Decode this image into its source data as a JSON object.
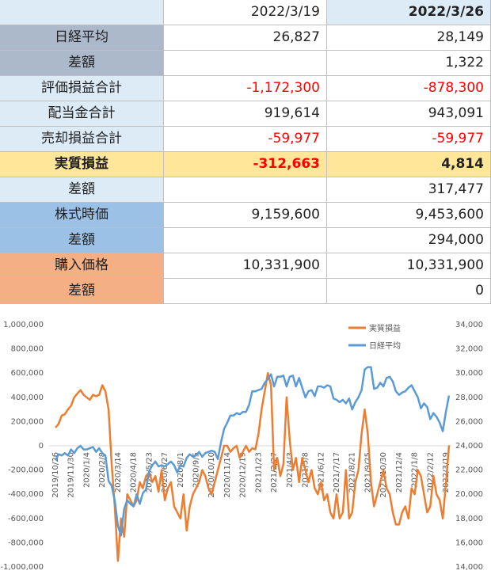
{
  "table": {
    "header": [
      "2022/3/19",
      "2022/3/26"
    ],
    "rows": [
      [
        "日経平均",
        "26,827",
        "28,149"
      ],
      [
        "差額",
        null,
        "1,322"
      ],
      [
        "評価損益合計",
        "-1,172,300",
        "-878,300"
      ],
      [
        "配当金合計",
        "919,614",
        "943,091"
      ],
      [
        "売却損益合計",
        "-59,977",
        "-59,977"
      ],
      [
        "実質損益",
        "-312,663",
        "4,814"
      ],
      [
        "差額",
        null,
        "317,477"
      ],
      [
        "株式時価",
        "9,159,600",
        "9,453,600"
      ],
      [
        "差額",
        null,
        "294,000"
      ],
      [
        "購入価格",
        "10,331,900",
        "10,331,900"
      ],
      [
        "差額",
        null,
        "0"
      ]
    ]
  },
  "chart_data": {
    "type": "line",
    "categories": [
      "2019/10/26",
      null,
      null,
      null,
      null,
      "2019/11/30",
      null,
      null,
      null,
      null,
      "2020/1/4",
      null,
      null,
      null,
      null,
      "2020/2/8",
      null,
      null,
      null,
      null,
      "2020/3/14",
      null,
      null,
      null,
      null,
      "2020/4/18",
      null,
      null,
      null,
      null,
      "2020/5/23",
      null,
      null,
      null,
      null,
      "2020/6/27",
      null,
      null,
      null,
      null,
      "2020/8/1",
      null,
      null,
      null,
      null,
      "2020/9/5",
      null,
      null,
      null,
      null,
      "2020/10/10",
      null,
      null,
      null,
      null,
      "2020/11/14",
      null,
      null,
      null,
      null,
      "2020/12/19",
      null,
      null,
      null,
      null,
      "2021/1/23",
      null,
      null,
      null,
      null,
      "2021/2/27",
      null,
      null,
      null,
      null,
      "2021/4/3",
      null,
      null,
      null,
      null,
      "2021/5/8",
      null,
      null,
      null,
      null,
      "2021/6/12",
      null,
      null,
      null,
      null,
      "2021/7/17",
      null,
      null,
      null,
      null,
      "2021/8/21",
      null,
      null,
      null,
      null,
      "2021/9/25",
      null,
      null,
      null,
      null,
      "2021/10/30",
      null,
      null,
      null,
      null,
      "2021/12/4",
      null,
      null,
      null,
      null,
      "2022/1/8",
      null,
      null,
      null,
      null,
      "2022/2/12",
      null,
      null,
      null,
      null,
      "2022/3/19",
      null
    ],
    "series": [
      {
        "name": "実質損益",
        "color": "#ed7d31",
        "values": [
          150000,
          180000,
          250000,
          260000,
          300000,
          330000,
          400000,
          430000,
          460000,
          420000,
          400000,
          380000,
          420000,
          410000,
          420000,
          500000,
          450000,
          300000,
          -150000,
          -500000,
          -950000,
          -600000,
          -750000,
          -400000,
          -450000,
          -500000,
          -450000,
          -300000,
          -350000,
          -250000,
          -220000,
          -300000,
          -250000,
          -380000,
          -200000,
          -450000,
          -350000,
          -300000,
          -500000,
          -550000,
          -600000,
          -400000,
          -700000,
          -500000,
          -400000,
          -350000,
          -300000,
          -200000,
          -250000,
          -350000,
          -400000,
          -300000,
          -200000,
          -100000,
          0,
          0,
          -50000,
          -20000,
          0,
          -100000,
          -50000,
          0,
          -50000,
          -20000,
          -30000,
          100000,
          300000,
          450000,
          600000,
          500000,
          -200000,
          -100000,
          -250000,
          -150000,
          400000,
          50000,
          -200000,
          -100000,
          -300000,
          -100000,
          -200000,
          -300000,
          -200000,
          -350000,
          -400000,
          -300000,
          -450000,
          -400000,
          -550000,
          -600000,
          -400000,
          -600000,
          -550000,
          -200000,
          -600000,
          -550000,
          -300000,
          -200000,
          100000,
          300000,
          100000,
          -300000,
          -500000,
          -400000,
          -300000,
          -200000,
          -350000,
          -400000,
          -550000,
          -650000,
          -650000,
          -550000,
          -500000,
          -600000,
          -350000,
          -400000,
          -200000,
          -250000,
          -400000,
          -550000,
          -500000,
          -250000,
          -400000,
          -450000,
          -600000,
          -312663,
          4814
        ]
      },
      {
        "name": "日経平均",
        "color": "#5b9bd5",
        "axis": "y2",
        "values": [
          22800,
          23300,
          23200,
          23400,
          23200,
          23700,
          23400,
          23800,
          24000,
          23700,
          23700,
          23800,
          23900,
          23500,
          23800,
          23400,
          23200,
          21100,
          20700,
          19500,
          17400,
          16600,
          18800,
          19500,
          19200,
          19000,
          20000,
          19200,
          20100,
          20400,
          21900,
          22400,
          22700,
          22300,
          22400,
          22300,
          22500,
          22700,
          22400,
          21800,
          22400,
          22300,
          23000,
          23300,
          23100,
          23200,
          23500,
          23100,
          23400,
          23500,
          23600,
          23500,
          22900,
          24300,
          25400,
          25900,
          26500,
          26500,
          26700,
          26600,
          26800,
          26800,
          27400,
          28500,
          28500,
          28600,
          28700,
          29200,
          29500,
          29900,
          28900,
          29700,
          29700,
          29800,
          28900,
          29700,
          29800,
          28900,
          29600,
          28800,
          28000,
          28500,
          28600,
          28100,
          28900,
          28900,
          28800,
          29000,
          28900,
          27900,
          27800,
          27600,
          27800,
          27500,
          27900,
          27000,
          27600,
          28000,
          28600,
          30300,
          30500,
          30500,
          28700,
          28800,
          29200,
          28900,
          29600,
          29700,
          29300,
          28500,
          28200,
          28400,
          28500,
          28800,
          29000,
          28500,
          28000,
          27100,
          27500,
          27200,
          26200,
          26700,
          26400,
          25900,
          25200,
          26827,
          28149
        ]
      }
    ],
    "ylim": [
      -1000000,
      1000000
    ],
    "yticks": [
      {
        "value": -1000000,
        "label": "-1,000,000"
      },
      {
        "value": -800000,
        "label": "-800,000"
      },
      {
        "value": -600000,
        "label": "-600,000"
      },
      {
        "value": -400000,
        "label": "-400,000"
      },
      {
        "value": -200000,
        "label": "-200,000"
      },
      0,
      {
        "value": 200000,
        "label": "200,000"
      },
      {
        "value": 400000,
        "label": "400,000"
      },
      {
        "value": 600000,
        "label": "600,000"
      },
      {
        "value": 800000,
        "label": "800,000"
      },
      {
        "value": 1000000,
        "label": "1,000,000"
      }
    ],
    "y2lim": [
      14000,
      34000
    ],
    "y2ticks": [
      {
        "value": 14000,
        "label": "14,000"
      },
      {
        "value": 16000,
        "label": "16,000"
      },
      {
        "value": 18000,
        "label": "18,000"
      },
      {
        "value": 20000,
        "label": "20,000"
      },
      {
        "value": 22000,
        "label": "22,000"
      },
      {
        "value": 24000,
        "label": "24,000"
      },
      {
        "value": 26000,
        "label": "26,000"
      },
      {
        "value": 28000,
        "label": "28,000"
      },
      {
        "value": 30000,
        "label": "30,000"
      },
      {
        "value": 32000,
        "label": "32,000"
      },
      {
        "value": 34000,
        "label": "34,000"
      }
    ],
    "legend": "upper right"
  }
}
